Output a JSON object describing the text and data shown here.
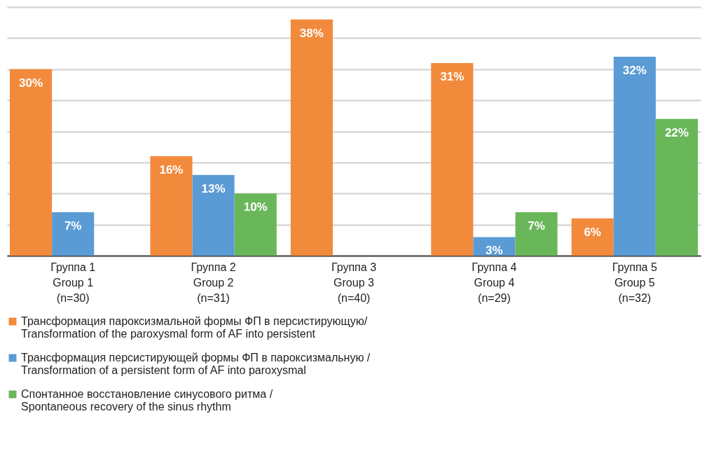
{
  "chart_data": {
    "type": "bar",
    "categories": [
      "Группа 1\nGroup 1\n(n=30)",
      "Группа 2\nGroup 2\n(n=31)",
      "Группа 3\nGroup 3\n(n=40)",
      "Группа 4\nGroup 4\n(n=29)",
      "Группа 5\nGroup  5\n(n=32)"
    ],
    "series": [
      {
        "name": "Трансформация пароксизмальной формы ФП в персистирующую/\nTransformation of the paroxysmal form of AF into persistent",
        "color": "#f28a3c",
        "values": [
          30,
          16,
          38,
          31,
          6
        ],
        "value_labels": [
          "30%",
          "16%",
          "38%",
          "31%",
          "6%"
        ]
      },
      {
        "name": "Трансформация персистирующей формы ФП в пароксизмальную /\nTransformation of a persistent form of AF into paroxysmal",
        "color": "#5b9bd5",
        "values": [
          7,
          13,
          null,
          3,
          32
        ],
        "value_labels": [
          "7%",
          "13%",
          null,
          "3%",
          "32%"
        ]
      },
      {
        "name": "Спонтанное восстановление синусового ритма /\nSpontaneous recovery of the sinus rhythm",
        "color": "#6ab75a",
        "values": [
          null,
          10,
          null,
          7,
          22
        ],
        "value_labels": [
          null,
          "10%",
          null,
          "7%",
          "22%"
        ]
      }
    ],
    "ylim": [
      0,
      40
    ],
    "yticks": [
      {
        "value": 0,
        "label": null
      },
      {
        "value": 5,
        "label": null
      },
      {
        "value": 10,
        "label": null
      },
      {
        "value": 15,
        "label": null
      },
      {
        "value": 20,
        "label": null
      },
      {
        "value": 25,
        "label": null
      },
      {
        "value": 30,
        "label": null
      },
      {
        "value": 35,
        "label": null
      },
      {
        "value": 40,
        "label": null
      }
    ],
    "tick_labels": "x",
    "grid": "y",
    "legend": "bottom"
  }
}
